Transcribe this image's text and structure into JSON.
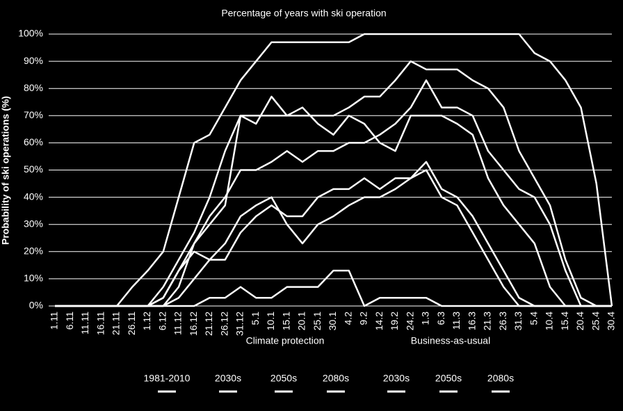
{
  "chart_data": {
    "type": "line",
    "title": "Percentage of years with ski operation",
    "y_label": "Probability of ski operations (%)",
    "categories": [
      "1.11",
      "6.11",
      "11.11",
      "16.11",
      "21.11",
      "26.11",
      "1.12",
      "6.12",
      "11.12",
      "16.12",
      "21.12",
      "26.12",
      "31.12",
      "5.1",
      "10.1",
      "15.1",
      "20.1",
      "25.1",
      "30.1",
      "4.2",
      "9.2",
      "14.2",
      "19.2",
      "24.2",
      "1.3",
      "6.3",
      "11.3",
      "16.3",
      "21.3",
      "26.3",
      "31.3",
      "5.4",
      "10.4",
      "15.4",
      "20.4",
      "25.4",
      "30.4"
    ],
    "ylim": [
      0,
      100
    ],
    "yticks": [
      {
        "value": 0,
        "label": "0%"
      },
      {
        "value": 10,
        "label": "10%"
      },
      {
        "value": 20,
        "label": "20%"
      },
      {
        "value": 30,
        "label": "30%"
      },
      {
        "value": 40,
        "label": "40%"
      },
      {
        "value": 50,
        "label": "50%"
      },
      {
        "value": 60,
        "label": "60%"
      },
      {
        "value": 70,
        "label": "70%"
      },
      {
        "value": 80,
        "label": "80%"
      },
      {
        "value": 90,
        "label": "90%"
      },
      {
        "value": 100,
        "label": "100%"
      }
    ],
    "grid": true,
    "legend_groups": [
      "Climate protection",
      "Business-as-usual"
    ],
    "series": [
      {
        "name": "1981-2010",
        "color": "#ffffff",
        "values": [
          0,
          0,
          0,
          0,
          0,
          7,
          13,
          20,
          40,
          60,
          63,
          73,
          83,
          90,
          97,
          97,
          97,
          97,
          97,
          97,
          100,
          100,
          100,
          100,
          100,
          100,
          100,
          100,
          100,
          100,
          100,
          93,
          90,
          83,
          73,
          45,
          0
        ]
      },
      {
        "name": "2030s",
        "group": 0,
        "color": "#ffffff",
        "values": [
          0,
          0,
          0,
          0,
          0,
          0,
          0,
          7,
          17,
          27,
          40,
          57,
          70,
          70,
          70,
          70,
          70,
          70,
          70,
          73,
          77,
          77,
          83,
          90,
          87,
          87,
          87,
          83,
          80,
          73,
          57,
          47,
          37,
          17,
          3,
          0,
          0
        ]
      },
      {
        "name": "2050s",
        "group": 0,
        "color": "#ffffff",
        "values": [
          0,
          0,
          0,
          0,
          0,
          0,
          0,
          0,
          7,
          23,
          33,
          40,
          50,
          50,
          53,
          57,
          53,
          57,
          57,
          60,
          60,
          63,
          67,
          73,
          83,
          73,
          73,
          70,
          57,
          50,
          43,
          40,
          30,
          13,
          0,
          0,
          0
        ]
      },
      {
        "name": "2080s",
        "group": 0,
        "color": "#ffffff",
        "values": [
          0,
          0,
          0,
          0,
          0,
          0,
          0,
          3,
          13,
          23,
          30,
          37,
          70,
          67,
          77,
          70,
          73,
          67,
          63,
          70,
          67,
          60,
          57,
          70,
          70,
          70,
          67,
          63,
          47,
          37,
          30,
          23,
          7,
          0,
          0,
          0,
          0
        ]
      },
      {
        "name": "2030s",
        "group": 1,
        "color": "#ffffff",
        "values": [
          0,
          0,
          0,
          0,
          0,
          0,
          0,
          3,
          13,
          20,
          17,
          23,
          33,
          37,
          40,
          30,
          23,
          30,
          33,
          37,
          40,
          40,
          43,
          47,
          53,
          43,
          40,
          33,
          23,
          13,
          3,
          0,
          0,
          0,
          0,
          0,
          0
        ]
      },
      {
        "name": "2050s",
        "group": 1,
        "color": "#ffffff",
        "values": [
          0,
          0,
          0,
          0,
          0,
          0,
          0,
          0,
          3,
          10,
          17,
          17,
          27,
          33,
          37,
          33,
          33,
          40,
          43,
          43,
          47,
          43,
          47,
          47,
          50,
          40,
          37,
          27,
          17,
          7,
          0,
          0,
          0,
          0,
          0,
          0,
          0
        ]
      },
      {
        "name": "2080s",
        "group": 1,
        "color": "#ffffff",
        "values": [
          0,
          0,
          0,
          0,
          0,
          0,
          0,
          0,
          0,
          0,
          3,
          3,
          7,
          3,
          3,
          7,
          7,
          7,
          13,
          13,
          0,
          3,
          3,
          3,
          3,
          0,
          0,
          0,
          0,
          0,
          0,
          0,
          0,
          0,
          0,
          0,
          0
        ]
      }
    ]
  }
}
